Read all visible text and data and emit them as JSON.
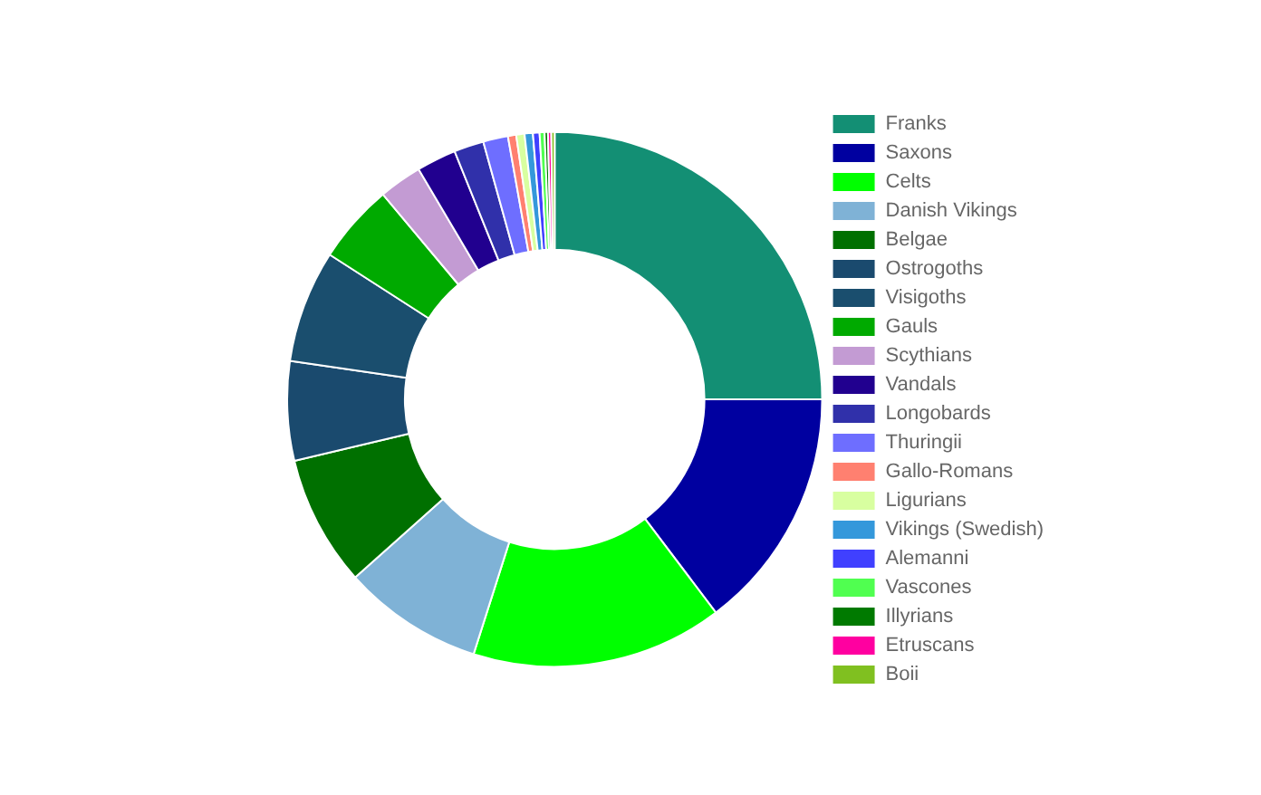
{
  "chart_data": {
    "type": "donut",
    "categories": [
      "Franks",
      "Saxons",
      "Celts",
      "Danish Vikings",
      "Belgae",
      "Ostrogoths",
      "Visigoths",
      "Gauls",
      "Scythians",
      "Vandals",
      "Longobards",
      "Thuringii",
      "Gallo-Romans",
      "Ligurians",
      "Vikings (Swedish)",
      "Alemanni",
      "Vascones",
      "Illyrians",
      "Etruscans",
      "Boii"
    ],
    "values": [
      25.0,
      14.7,
      15.2,
      8.5,
      7.9,
      6.0,
      6.8,
      4.8,
      2.6,
      2.4,
      1.8,
      1.5,
      0.5,
      0.5,
      0.5,
      0.4,
      0.3,
      0.2,
      0.2,
      0.2
    ],
    "colors": [
      "#138f74",
      "#0000a0",
      "#00ff00",
      "#7fb2d6",
      "#007000",
      "#1a4a6e",
      "#1a4e6e",
      "#00aa00",
      "#c39bd3",
      "#21008f",
      "#3030aa",
      "#6e6eff",
      "#ff8070",
      "#d8ffa0",
      "#3498db",
      "#4040ff",
      "#50ff50",
      "#007a00",
      "#ff00a0",
      "#80c020"
    ],
    "legend": "right"
  }
}
